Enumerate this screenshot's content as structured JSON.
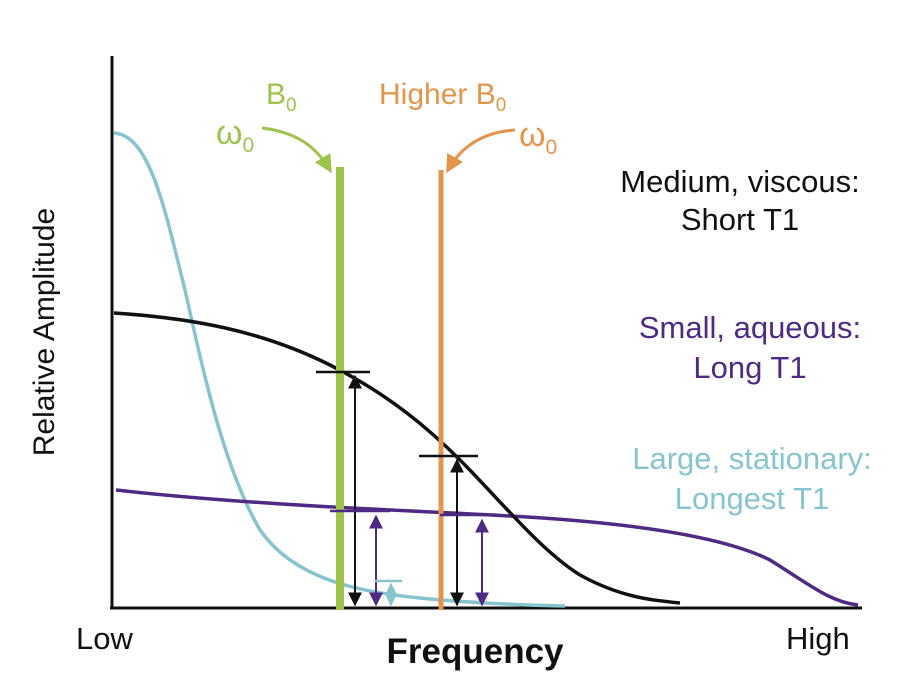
{
  "x_axis": {
    "label": "Frequency",
    "low": "Low",
    "high": "High"
  },
  "y_axis": {
    "label": "Relative Amplitude"
  },
  "fields": [
    {
      "name": "B",
      "sub": "0",
      "omega": "ω",
      "omega_sub": "0",
      "color": "#9dc34a"
    },
    {
      "name": "Higher B",
      "sub": "0",
      "omega": "ω",
      "omega_sub": "0",
      "color": "#e3954b"
    }
  ],
  "curves": [
    {
      "line1": "Medium, viscous:",
      "line2": "Short T1",
      "color": "#111111"
    },
    {
      "line1": "Small, aqueous:",
      "line2": "Long T1",
      "color": "#4e2a84"
    },
    {
      "line1": "Large, stationary:",
      "line2": "Longest T1",
      "color": "#86c4cf"
    }
  ]
}
